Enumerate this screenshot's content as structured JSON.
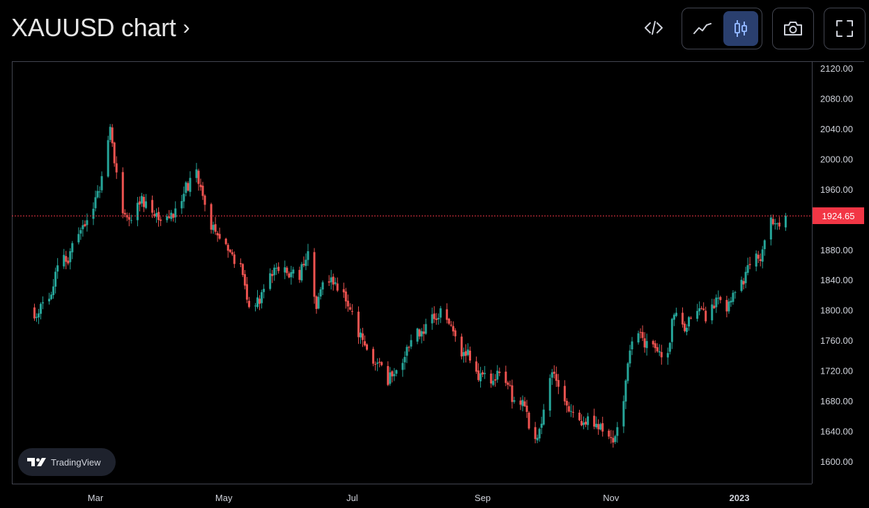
{
  "header": {
    "title": "XAUUSD chart",
    "title_chevron": "›"
  },
  "toolbar": {
    "embed_icon": "code-icon",
    "line_icon": "line-chart-icon",
    "candle_icon": "candlestick-icon",
    "snapshot_icon": "camera-icon",
    "fullscreen_icon": "fullscreen-icon"
  },
  "branding": {
    "logo_text": "TradingView"
  },
  "colors": {
    "up": "#26a69a",
    "down": "#ef5350",
    "price_line": "#f23645",
    "active_toggle": "#2a3f6e"
  },
  "chart_data": {
    "type": "candlestick",
    "symbol": "XAUUSD",
    "interval": "daily",
    "ylim": [
      1590,
      2130
    ],
    "y_ticks": [
      "2120.00",
      "2080.00",
      "2040.00",
      "2000.00",
      "1960.00",
      "1920.00",
      "1880.00",
      "1840.00",
      "1800.00",
      "1760.00",
      "1720.00",
      "1680.00",
      "1640.00",
      "1600.00"
    ],
    "x_ticks": [
      "Mar",
      "May",
      "Jul",
      "Sep",
      "Nov",
      "2023"
    ],
    "last_price": "1924.65",
    "path": [
      [
        "2022-01-31",
        1797
      ],
      [
        "2022-02-03",
        1806
      ],
      [
        "2022-02-08",
        1826
      ],
      [
        "2022-02-11",
        1859
      ],
      [
        "2022-02-16",
        1870
      ],
      [
        "2022-02-21",
        1906
      ],
      [
        "2022-02-24",
        1904
      ],
      [
        "2022-03-01",
        1943
      ],
      [
        "2022-03-04",
        1970
      ],
      [
        "2022-03-08",
        2050
      ],
      [
        "2022-03-10",
        1998
      ],
      [
        "2022-03-15",
        1918
      ],
      [
        "2022-03-18",
        1921
      ],
      [
        "2022-03-23",
        1944
      ],
      [
        "2022-03-28",
        1922
      ],
      [
        "2022-04-01",
        1926
      ],
      [
        "2022-04-06",
        1925
      ],
      [
        "2022-04-11",
        1953
      ],
      [
        "2022-04-18",
        1979
      ],
      [
        "2022-04-21",
        1950
      ],
      [
        "2022-04-26",
        1905
      ],
      [
        "2022-04-29",
        1896
      ],
      [
        "2022-05-04",
        1880
      ],
      [
        "2022-05-09",
        1855
      ],
      [
        "2022-05-13",
        1810
      ],
      [
        "2022-05-18",
        1815
      ],
      [
        "2022-05-23",
        1853
      ],
      [
        "2022-05-27",
        1856
      ],
      [
        "2022-06-01",
        1848
      ],
      [
        "2022-06-06",
        1848
      ],
      [
        "2022-06-10",
        1872
      ],
      [
        "2022-06-14",
        1807
      ],
      [
        "2022-06-17",
        1841
      ],
      [
        "2022-06-22",
        1838
      ],
      [
        "2022-06-27",
        1823
      ],
      [
        "2022-06-30",
        1807
      ],
      [
        "2022-07-05",
        1764
      ],
      [
        "2022-07-08",
        1742
      ],
      [
        "2022-07-13",
        1735
      ],
      [
        "2022-07-18",
        1709
      ],
      [
        "2022-07-21",
        1718
      ],
      [
        "2022-07-26",
        1735
      ],
      [
        "2022-07-29",
        1766
      ],
      [
        "2022-08-03",
        1775
      ],
      [
        "2022-08-08",
        1788
      ],
      [
        "2022-08-12",
        1802
      ],
      [
        "2022-08-17",
        1774
      ],
      [
        "2022-08-22",
        1747
      ],
      [
        "2022-08-26",
        1737
      ],
      [
        "2022-08-31",
        1711
      ],
      [
        "2022-09-05",
        1710
      ],
      [
        "2022-09-09",
        1716
      ],
      [
        "2022-09-13",
        1702
      ],
      [
        "2022-09-16",
        1675
      ],
      [
        "2022-09-21",
        1672
      ],
      [
        "2022-09-26",
        1622
      ],
      [
        "2022-09-30",
        1660
      ],
      [
        "2022-10-04",
        1725
      ],
      [
        "2022-10-07",
        1695
      ],
      [
        "2022-10-12",
        1667
      ],
      [
        "2022-10-17",
        1650
      ],
      [
        "2022-10-21",
        1657
      ],
      [
        "2022-10-25",
        1652
      ],
      [
        "2022-10-28",
        1645
      ],
      [
        "2022-11-02",
        1631
      ],
      [
        "2022-11-07",
        1676
      ],
      [
        "2022-11-10",
        1755
      ],
      [
        "2022-11-15",
        1776
      ],
      [
        "2022-11-18",
        1751
      ],
      [
        "2022-11-23",
        1750
      ],
      [
        "2022-11-28",
        1740
      ],
      [
        "2022-12-01",
        1802
      ],
      [
        "2022-12-06",
        1770
      ],
      [
        "2022-12-09",
        1797
      ],
      [
        "2022-12-13",
        1810
      ],
      [
        "2022-12-16",
        1793
      ],
      [
        "2022-12-21",
        1811
      ],
      [
        "2022-12-26",
        1800
      ],
      [
        "2022-12-29",
        1815
      ],
      [
        "2023-01-03",
        1838
      ],
      [
        "2023-01-06",
        1866
      ],
      [
        "2023-01-11",
        1874
      ],
      [
        "2023-01-16",
        1915
      ],
      [
        "2023-01-19",
        1908
      ],
      [
        "2023-01-23",
        1924.65
      ]
    ]
  }
}
